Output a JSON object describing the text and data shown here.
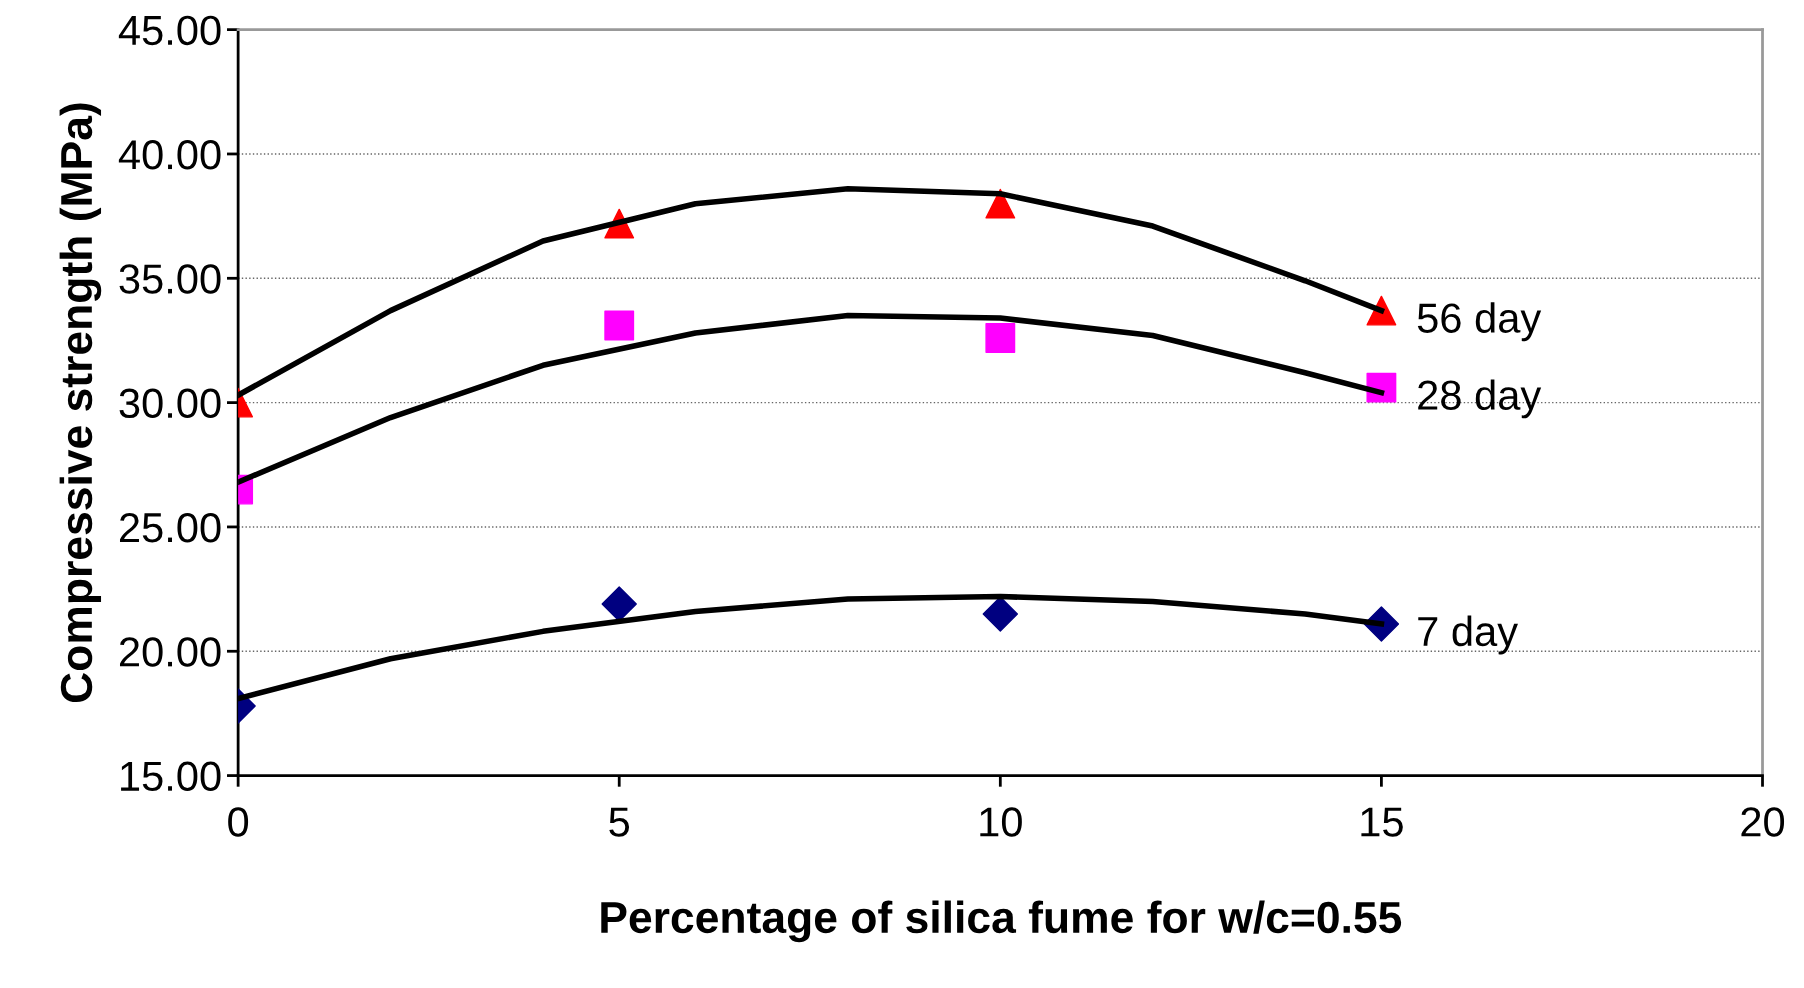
{
  "chart_data": {
    "type": "scatter",
    "xlabel": "Percentage of silica fume for w/c=0.55",
    "ylabel": "Compressive strength (MPa)",
    "xlim": [
      0,
      20
    ],
    "xticks": [
      0,
      5,
      10,
      15,
      20
    ],
    "ylim": [
      15,
      45
    ],
    "yticks": [
      {
        "value": 15,
        "label": "15.00"
      },
      {
        "value": 20,
        "label": "20.00"
      },
      {
        "value": 25,
        "label": "25.00"
      },
      {
        "value": 30,
        "label": "30.00"
      },
      {
        "value": 35,
        "label": "35.00"
      },
      {
        "value": 40,
        "label": "40.00"
      },
      {
        "value": 45,
        "label": "45.00"
      }
    ],
    "grid": "y",
    "legend": false,
    "series": [
      {
        "type": "line",
        "color": "#000000",
        "marker": "none",
        "x": [
          0,
          2,
          4,
          6,
          8,
          10,
          12,
          14,
          15
        ],
        "values": [
          30.3,
          33.7,
          36.5,
          38.0,
          38.6,
          38.4,
          37.1,
          34.9,
          33.7
        ]
      },
      {
        "type": "line",
        "color": "#000000",
        "marker": "none",
        "x": [
          0,
          2,
          4,
          6,
          8,
          10,
          12,
          14,
          15
        ],
        "values": [
          26.8,
          29.4,
          31.5,
          32.8,
          33.5,
          33.4,
          32.7,
          31.2,
          30.4
        ]
      },
      {
        "type": "line",
        "color": "#000000",
        "marker": "none",
        "x": [
          0,
          2,
          4,
          6,
          8,
          10,
          12,
          14,
          15
        ],
        "values": [
          18.1,
          19.7,
          20.8,
          21.6,
          22.1,
          22.2,
          22.0,
          21.5,
          21.1
        ]
      },
      {
        "name": "56 day",
        "color": "#ff0000",
        "marker": "triangle",
        "x": [
          0,
          5,
          10,
          15
        ],
        "values": [
          30.0,
          37.2,
          38.0,
          33.7
        ]
      },
      {
        "name": "28 day",
        "color": "#ff00ff",
        "marker": "square",
        "x": [
          0,
          5,
          10,
          15
        ],
        "values": [
          26.5,
          33.1,
          32.6,
          30.6
        ]
      },
      {
        "name": "7 day",
        "color": "#000080",
        "marker": "diamond",
        "x": [
          0,
          5,
          10,
          15
        ],
        "values": [
          17.8,
          21.9,
          21.5,
          21.1
        ]
      }
    ]
  }
}
